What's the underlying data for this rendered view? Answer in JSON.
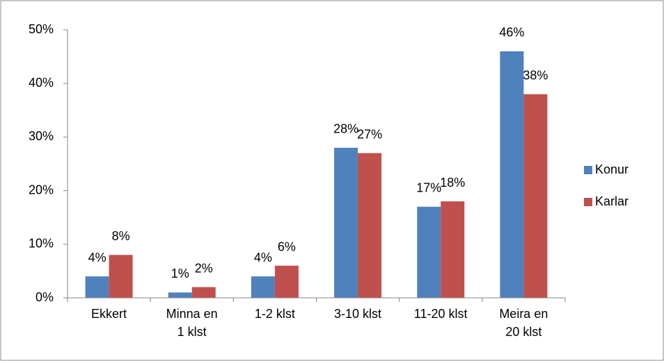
{
  "chart_data": {
    "type": "bar",
    "categories": [
      "Ekkert",
      "Minna en\n1 klst",
      "1-2 klst",
      "3-10 klst",
      "11-20 klst",
      "Meira en\n20 klst"
    ],
    "series": [
      {
        "name": "Konur",
        "color": "#4f81bd",
        "values": [
          4,
          1,
          4,
          28,
          17,
          46
        ],
        "value_labels": [
          "4%",
          "1%",
          "4%",
          "28%",
          "17%",
          "46%"
        ]
      },
      {
        "name": "Karlar",
        "color": "#c0504d",
        "values": [
          8,
          2,
          6,
          27,
          18,
          38
        ],
        "value_labels": [
          "8%",
          "2%",
          "6%",
          "27%",
          "18%",
          "38%"
        ]
      }
    ],
    "ylim": [
      0,
      50
    ],
    "yticks": [
      {
        "value": 0,
        "label": "0%"
      },
      {
        "value": 10,
        "label": "10%"
      },
      {
        "value": 20,
        "label": "20%"
      },
      {
        "value": 30,
        "label": "30%"
      },
      {
        "value": 40,
        "label": "40%"
      },
      {
        "value": 50,
        "label": "50%"
      }
    ],
    "grid": false,
    "legend": "right"
  }
}
